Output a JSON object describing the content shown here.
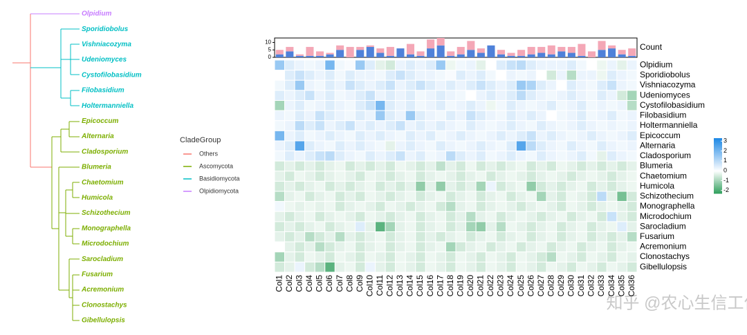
{
  "chart_data": [
    {
      "type": "heatmap",
      "x_categories": [
        "Col1",
        "Col2",
        "Col3",
        "Col4",
        "Col5",
        "Col6",
        "Col7",
        "Col8",
        "Col9",
        "Col10",
        "Col11",
        "Col12",
        "Col13",
        "Col14",
        "Col15",
        "Col16",
        "Col17",
        "Col18",
        "Col19",
        "Col20",
        "Col21",
        "Col22",
        "Col23",
        "Col24",
        "Col25",
        "Col26",
        "Col27",
        "Col28",
        "Col29",
        "Col30",
        "Col31",
        "Col32",
        "Col33",
        "Col34",
        "Col35",
        "Col36"
      ],
      "y_categories": [
        "Olpidium",
        "Sporidiobolus",
        "Vishniacozyma",
        "Udeniomyces",
        "Cystofilobasidium",
        "Filobasidium",
        "Holtermanniella",
        "Epicoccum",
        "Alternaria",
        "Cladosporium",
        "Blumeria",
        "Chaetomium",
        "Humicola",
        "Schizothecium",
        "Monographella",
        "Microdochium",
        "Sarocladium",
        "Fusarium",
        "Acremonium",
        "Clonostachys",
        "Gibellulopsis"
      ],
      "values": [
        [
          1.5,
          0.5,
          0.3,
          0.2,
          0.3,
          2,
          0.2,
          0.1,
          1.5,
          0.5,
          -0.3,
          -0.5,
          0.3,
          0.5,
          0.3,
          0.5,
          1.5,
          -0.2,
          0.2,
          0.3,
          -0.3,
          0,
          0.5,
          0.8,
          1,
          0.5,
          0.3,
          0.3,
          0.3,
          0.5,
          0.2,
          0,
          -0.2,
          0.3,
          -0.3,
          0.3
        ],
        [
          0,
          0.5,
          0.8,
          0.5,
          0.3,
          0.5,
          0.2,
          0.5,
          0.3,
          0.3,
          0.2,
          0.5,
          0.8,
          0.5,
          0.3,
          0.3,
          0.2,
          0.1,
          0.5,
          0.3,
          0.5,
          0.2,
          0,
          0.3,
          0.2,
          0.3,
          0,
          -0.5,
          0.3,
          -0.8,
          0.3,
          0.3,
          -0.2,
          0.5,
          0.3,
          0.2
        ],
        [
          0.2,
          0.5,
          1.5,
          0.3,
          0.2,
          0.5,
          0.3,
          0.8,
          0.5,
          0.3,
          0.5,
          0.8,
          0.3,
          0.5,
          0.8,
          0.5,
          0.3,
          0.5,
          0.3,
          0.5,
          0.8,
          0.5,
          0.3,
          0.5,
          1.5,
          1.2,
          0.5,
          0.3,
          0,
          0.5,
          0.3,
          0.2,
          0.5,
          0.8,
          0.3,
          0.2
        ],
        [
          0.5,
          0.3,
          0.5,
          0.8,
          0.3,
          0.5,
          0.2,
          0.3,
          0.5,
          0.8,
          0.3,
          0.5,
          0.3,
          0.5,
          0.2,
          0.3,
          0.5,
          0.3,
          0.2,
          0,
          0.3,
          0.5,
          0.3,
          0.5,
          1,
          0.5,
          0.3,
          0.2,
          0.3,
          0.5,
          0.3,
          0.2,
          0.5,
          0.3,
          -0.5,
          -1
        ],
        [
          -1,
          0.3,
          0.5,
          0.2,
          0.3,
          0.5,
          0.3,
          0.2,
          0.5,
          0.8,
          2,
          0.5,
          0.3,
          0.5,
          0.2,
          0.3,
          0.5,
          0.2,
          0.3,
          0.5,
          0.3,
          -0.2,
          0.2,
          0.5,
          0.3,
          0.2,
          0.3,
          0.5,
          0.2,
          0.3,
          0.5,
          0.2,
          0.3,
          0.2,
          0.3,
          -0.8
        ],
        [
          0.3,
          0.2,
          0.5,
          0.3,
          0.8,
          0.5,
          0.3,
          0.2,
          0.5,
          0.3,
          1.5,
          0.5,
          0.3,
          1.5,
          0.5,
          0.3,
          0.2,
          0.5,
          0.3,
          0.8,
          0.5,
          0.3,
          0.2,
          0.5,
          0.3,
          0.5,
          0.3,
          0,
          0.2,
          0.3,
          0.5,
          0.2,
          0.3,
          0.5,
          0.2,
          0.3
        ],
        [
          0.2,
          0.3,
          1,
          0.5,
          0.8,
          0.3,
          0.5,
          0.8,
          0.3,
          0.5,
          0.3,
          0.5,
          0.8,
          0.3,
          0.5,
          0.3,
          0.5,
          0.3,
          0.2,
          0.5,
          0.3,
          0.2,
          0.3,
          0.5,
          0.3,
          0.2,
          0.5,
          0.3,
          0.2,
          0.3,
          0.5,
          0.3,
          0.2,
          0.3,
          0.2,
          0.3
        ],
        [
          2,
          0.3,
          0.5,
          0.2,
          0.3,
          0.5,
          0.3,
          0.2,
          0.5,
          0.3,
          0.5,
          0.3,
          0.2,
          0.5,
          0.3,
          0.5,
          0.2,
          0.3,
          0.5,
          0.3,
          0.2,
          0.3,
          0.5,
          0.3,
          0.5,
          0.8,
          0.3,
          0.5,
          0.3,
          0.2,
          0.3,
          0.5,
          0.3,
          0.2,
          0.3,
          0.5
        ],
        [
          0.3,
          0.5,
          2.5,
          0.5,
          0.3,
          0.2,
          0.5,
          0.3,
          0.5,
          0.3,
          0.2,
          -0.3,
          0.3,
          0.5,
          0.3,
          0.2,
          0.5,
          0.3,
          0.2,
          0.3,
          0.5,
          0.3,
          0.2,
          0.5,
          2.5,
          1,
          0.5,
          0.3,
          0.2,
          0.5,
          0.3,
          0.2,
          0.5,
          0.3,
          0.2,
          0.3
        ],
        [
          0.2,
          0.5,
          0.3,
          0.5,
          0.8,
          1,
          0.5,
          0.3,
          0.2,
          0.5,
          0.3,
          0.5,
          0.8,
          0.3,
          0.5,
          0.2,
          0.3,
          1,
          0.5,
          0.3,
          0.5,
          0.2,
          0.3,
          0.5,
          0.3,
          0.2,
          0.5,
          0.3,
          0.2,
          0.3,
          0.5,
          0.2,
          -0.3,
          0.5,
          0.3,
          0.2
        ],
        [
          -0.5,
          -0.3,
          -0.5,
          -0.3,
          -0.5,
          -0.3,
          -0.2,
          -0.5,
          -0.3,
          -0.5,
          -0.3,
          -0.5,
          -0.2,
          -0.3,
          -0.5,
          -0.3,
          -0.7,
          -0.3,
          -0.5,
          -0.2,
          -0.5,
          -0.3,
          -0.5,
          -0.3,
          -0.2,
          -0.5,
          -0.3,
          -0.5,
          -0.2,
          -0.3,
          -0.5,
          -0.3,
          -0.5,
          -0.3,
          -0.5,
          -0.3
        ],
        [
          -0.3,
          -0.5,
          -0.2,
          -0.3,
          -0.5,
          -0.3,
          -0.2,
          -0.3,
          -0.5,
          -0.2,
          -0.3,
          -0.5,
          -0.3,
          -0.2,
          -0.5,
          -0.3,
          -0.2,
          -0.3,
          -0.5,
          -0.3,
          -0.2,
          -0.5,
          -0.3,
          -0.2,
          -0.3,
          -0.5,
          -0.3,
          -0.2,
          -0.3,
          -0.5,
          -0.3,
          -0.2,
          -0.3,
          -0.5,
          -0.3,
          -0.2
        ],
        [
          -0.5,
          -0.3,
          -0.5,
          -0.3,
          -0.2,
          -0.5,
          -0.3,
          -0.5,
          -0.3,
          -0.2,
          -0.5,
          -0.3,
          -0.5,
          -0.3,
          -1.2,
          -0.3,
          -1.2,
          -0.3,
          -0.5,
          -0.3,
          -1,
          0.3,
          -0.5,
          -0.3,
          -0.2,
          -1.2,
          -0.5,
          -0.3,
          -0.5,
          -0.3,
          -0.2,
          -0.5,
          -0.3,
          -0.5,
          -0.3,
          -0.2
        ],
        [
          -0.8,
          -0.3,
          -0.2,
          -0.5,
          -0.3,
          -0.2,
          -0.5,
          -0.3,
          -0.5,
          -0.2,
          -0.3,
          -0.5,
          -0.3,
          -0.2,
          -0.5,
          -0.3,
          -0.2,
          -0.5,
          -0.3,
          -0.2,
          -0.5,
          -0.3,
          -0.2,
          -0.5,
          -0.3,
          -0.2,
          -1,
          -0.3,
          -0.5,
          -0.2,
          -0.3,
          -0.5,
          1,
          -0.3,
          -1.5,
          -0.5
        ],
        [
          0.2,
          -0.2,
          -0.3,
          -0.2,
          -0.3,
          -0.2,
          -0.5,
          -0.3,
          -0.2,
          -0.3,
          -0.5,
          -0.2,
          -0.3,
          -0.5,
          -0.3,
          -0.2,
          -0.5,
          -0.8,
          -0.3,
          -0.2,
          -0.5,
          -0.3,
          -0.2,
          -0.3,
          -0.5,
          -0.3,
          -0.2,
          -0.3,
          -0.5,
          -0.2,
          -0.3,
          -0.5,
          -0.3,
          -0.2,
          -0.3,
          -0.5
        ],
        [
          -0.3,
          -0.5,
          -0.3,
          -0.2,
          -0.5,
          -0.3,
          -0.2,
          -0.3,
          -0.5,
          -0.2,
          -0.3,
          -0.5,
          -0.3,
          -0.2,
          -0.5,
          -0.3,
          -0.2,
          -0.5,
          -0.3,
          -0.8,
          -0.3,
          -0.2,
          -0.5,
          -0.3,
          -0.2,
          -0.3,
          -0.5,
          -0.3,
          -0.2,
          -0.5,
          -0.3,
          -0.2,
          -0.5,
          0.8,
          -0.3,
          -0.5
        ],
        [
          -0.5,
          -0.3,
          -0.5,
          -0.3,
          -0.2,
          -0.5,
          -0.3,
          -0.2,
          0.5,
          -0.3,
          -1.8,
          -1,
          -0.3,
          -0.2,
          -0.5,
          -0.3,
          -0.2,
          -0.5,
          -0.3,
          -1,
          -1.2,
          -0.3,
          -0.8,
          -0.2,
          -0.3,
          -0.5,
          -0.3,
          -0.2,
          -0.5,
          -0.3,
          -0.2,
          -0.5,
          -0.3,
          -0.2,
          0.5,
          -0.3
        ],
        [
          -0.3,
          -0.5,
          -0.3,
          -0.8,
          -0.5,
          -0.3,
          -0.8,
          -0.3,
          -0.5,
          -0.3,
          -0.2,
          -0.5,
          -0.3,
          -0.2,
          -0.5,
          -0.3,
          -0.5,
          -0.3,
          -0.2,
          -0.5,
          -0.3,
          -0.2,
          -0.5,
          -0.3,
          -0.2,
          -0.5,
          -0.3,
          -0.2,
          -0.5,
          -0.3,
          -0.2,
          -0.5,
          -0.3,
          -0.5,
          -0.3,
          -0.8
        ],
        [
          0,
          -0.3,
          -0.5,
          -0.3,
          -0.8,
          -0.5,
          -0.3,
          -0.2,
          -0.5,
          -0.3,
          -0.2,
          -0.5,
          -0.3,
          -0.2,
          -0.5,
          -0.3,
          -0.2,
          -1,
          -0.5,
          -0.3,
          -0.2,
          -0.5,
          -0.3,
          -0.2,
          -0.5,
          -0.3,
          -0.2,
          -0.5,
          -0.3,
          -0.2,
          -0.5,
          -0.3,
          -0.2,
          -0.5,
          -0.3,
          -0.2
        ],
        [
          -1,
          -0.3,
          -0.5,
          -0.2,
          -0.3,
          -0.5,
          -0.2,
          -0.3,
          -0.5,
          -0.2,
          -0.3,
          -0.5,
          -0.2,
          -0.3,
          -0.5,
          -0.2,
          -0.3,
          -0.5,
          -0.2,
          -0.3,
          -0.5,
          -0.2,
          -0.3,
          -0.5,
          -0.2,
          -0.3,
          -0.5,
          -0.8,
          -0.2,
          -0.3,
          -0.5,
          -0.2,
          -0.3,
          -0.5,
          -0.2,
          -0.3
        ],
        [
          -0.5,
          -0.3,
          0.3,
          -0.5,
          -0.8,
          -1.8,
          -0.3,
          -0.2,
          -0.5,
          0.3,
          -0.3,
          -0.5,
          -0.2,
          -0.3,
          -0.5,
          -0.2,
          -0.3,
          -0.5,
          -0.2,
          -0.3,
          -0.5,
          -0.2,
          -0.3,
          -0.5,
          -0.2,
          -0.3,
          -0.5,
          -0.2,
          -0.3,
          -0.5,
          -0.2,
          -0.3,
          -0.5,
          -0.2,
          -0.3,
          -0.5
        ]
      ],
      "colors": {
        "low": "#2E9E5B",
        "mid": "#FFFFFF",
        "high": "#1E88E5"
      },
      "clim": [
        -2.3,
        3.3
      ],
      "cticks": [
        3,
        2,
        1,
        0,
        -1,
        -2
      ]
    },
    {
      "type": "bar",
      "stacked": true,
      "ylabel": "Count",
      "series": [
        {
          "color": "#4F81D9",
          "values": [
            2,
            4,
            1,
            1,
            1,
            2,
            5,
            0,
            5,
            7,
            3,
            1,
            6,
            2,
            1,
            6,
            8,
            1,
            2,
            5,
            3,
            8,
            2,
            1,
            1,
            2,
            3,
            2,
            4,
            3,
            1,
            0,
            5,
            6,
            2,
            1
          ]
        },
        {
          "color": "#F4A7B6",
          "values": [
            3,
            3,
            1,
            6,
            3,
            1,
            3,
            7,
            2,
            1,
            3,
            6,
            0,
            7,
            3,
            6,
            5,
            3,
            5,
            6,
            3,
            0,
            3,
            2,
            4,
            5,
            4,
            6,
            3,
            4,
            8,
            4,
            6,
            2,
            3,
            5
          ]
        }
      ],
      "ylim": [
        0,
        13
      ],
      "yticks": [
        0,
        5,
        10
      ]
    }
  ],
  "tree": {
    "legend_title": "CladeGroup",
    "groups": [
      {
        "name": "Others",
        "color": "#F8766D"
      },
      {
        "name": "Ascomycota",
        "color": "#7CAE00"
      },
      {
        "name": "Basidiomycota",
        "color": "#00BFC4"
      },
      {
        "name": "Olpidiomycota",
        "color": "#C77CFF"
      }
    ],
    "leaves": [
      {
        "label": "Olpidium",
        "group": "Olpidiomycota"
      },
      {
        "label": "Sporidiobolus",
        "group": "Basidiomycota"
      },
      {
        "label": "Vishniacozyma",
        "group": "Basidiomycota"
      },
      {
        "label": "Udeniomyces",
        "group": "Basidiomycota"
      },
      {
        "label": "Cystofilobasidium",
        "group": "Basidiomycota"
      },
      {
        "label": "Filobasidium",
        "group": "Basidiomycota"
      },
      {
        "label": "Holtermanniella",
        "group": "Basidiomycota"
      },
      {
        "label": "Epicoccum",
        "group": "Ascomycota"
      },
      {
        "label": "Alternaria",
        "group": "Ascomycota"
      },
      {
        "label": "Cladosporium",
        "group": "Ascomycota"
      },
      {
        "label": "Blumeria",
        "group": "Ascomycota"
      },
      {
        "label": "Chaetomium",
        "group": "Ascomycota"
      },
      {
        "label": "Humicola",
        "group": "Ascomycota"
      },
      {
        "label": "Schizothecium",
        "group": "Ascomycota"
      },
      {
        "label": "Monographella",
        "group": "Ascomycota"
      },
      {
        "label": "Microdochium",
        "group": "Ascomycota"
      },
      {
        "label": "Sarocladium",
        "group": "Ascomycota"
      },
      {
        "label": "Fusarium",
        "group": "Ascomycota"
      },
      {
        "label": "Acremonium",
        "group": "Ascomycota"
      },
      {
        "label": "Clonostachys",
        "group": "Ascomycota"
      },
      {
        "label": "Gibellulopsis",
        "group": "Ascomycota"
      }
    ]
  },
  "watermark": "知乎 @农心生信工作室"
}
